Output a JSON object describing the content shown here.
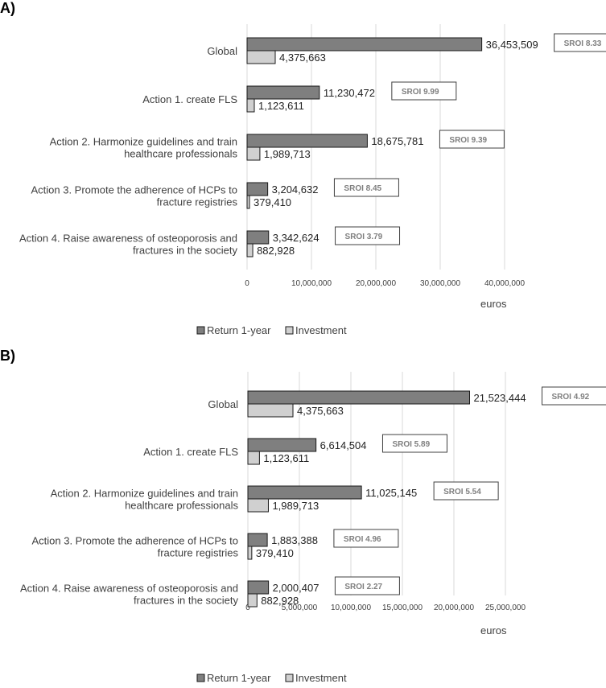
{
  "chart_data": [
    {
      "type": "bar",
      "orientation": "horizontal",
      "panel": "A)",
      "categories": [
        "Global",
        "Action 1. create FLS",
        [
          "Action 2. Harmonize guidelines and train",
          "healthcare professionals"
        ],
        [
          "Action 3. Promote the adherence of HCPs to",
          "fracture registries"
        ],
        [
          "Action 4. Raise awareness of osteoporosis and",
          "fractures in the society"
        ]
      ],
      "series": [
        {
          "name": "Return 1-year",
          "color": "#7f7f7f",
          "values": [
            36453509,
            11230472,
            18675781,
            3204632,
            3342624
          ],
          "labels": [
            "36,453,509",
            "11,230,472",
            "18,675,781",
            "3,204,632",
            "3,342,624"
          ]
        },
        {
          "name": "Investment",
          "color": "#d0d0d0",
          "values": [
            4375663,
            1123611,
            1989713,
            379410,
            882928
          ],
          "labels": [
            "4,375,663",
            "1,123,611",
            "1,989,713",
            "379,410",
            "882,928"
          ]
        }
      ],
      "sroi": [
        "SROI 8.33",
        "SROI 9.99",
        "SROI 9.39",
        "SROI 8.45",
        "SROI 3.79"
      ],
      "xlim": [
        0,
        40000000
      ],
      "xticks": [
        0,
        10000000,
        20000000,
        30000000,
        40000000
      ],
      "xtick_labels": [
        "0",
        "10,000,000",
        "20,000,000",
        "30,000,000",
        "40,000,000"
      ],
      "xlabel": "euros",
      "grid": "vertical",
      "legend": "bottom"
    },
    {
      "type": "bar",
      "orientation": "horizontal",
      "panel": "B)",
      "categories": [
        "Global",
        "Action 1. create FLS",
        [
          "Action 2. Harmonize guidelines and train",
          "healthcare professionals"
        ],
        [
          "Action 3. Promote the adherence of HCPs to",
          "fracture registries"
        ],
        [
          "Action 4. Raise awareness of osteoporosis and",
          "fractures in the society"
        ]
      ],
      "series": [
        {
          "name": "Return 1-year",
          "color": "#7f7f7f",
          "values": [
            21523444,
            6614504,
            11025145,
            1883388,
            2000407
          ],
          "labels": [
            "21,523,444",
            "6,614,504",
            "11,025,145",
            "1,883,388",
            "2,000,407"
          ]
        },
        {
          "name": "Investment",
          "color": "#d0d0d0",
          "values": [
            4375663,
            1123611,
            1989713,
            379410,
            882928
          ],
          "labels": [
            "4,375,663",
            "1,123,611",
            "1,989,713",
            "379,410",
            "882,928"
          ]
        }
      ],
      "sroi": [
        "SROI 4.92",
        "SROI 5.89",
        "SROI 5.54",
        "SROI 4.96",
        "SROI 2.27"
      ],
      "xlim": [
        0,
        25000000
      ],
      "xticks": [
        0,
        5000000,
        10000000,
        15000000,
        20000000,
        25000000
      ],
      "xtick_labels": [
        "0",
        "5,000,000",
        "10,000,000",
        "15,000,000",
        "20,000,000",
        "25,000,000"
      ],
      "xlabel": "euros",
      "grid": "vertical",
      "legend": "bottom"
    }
  ]
}
